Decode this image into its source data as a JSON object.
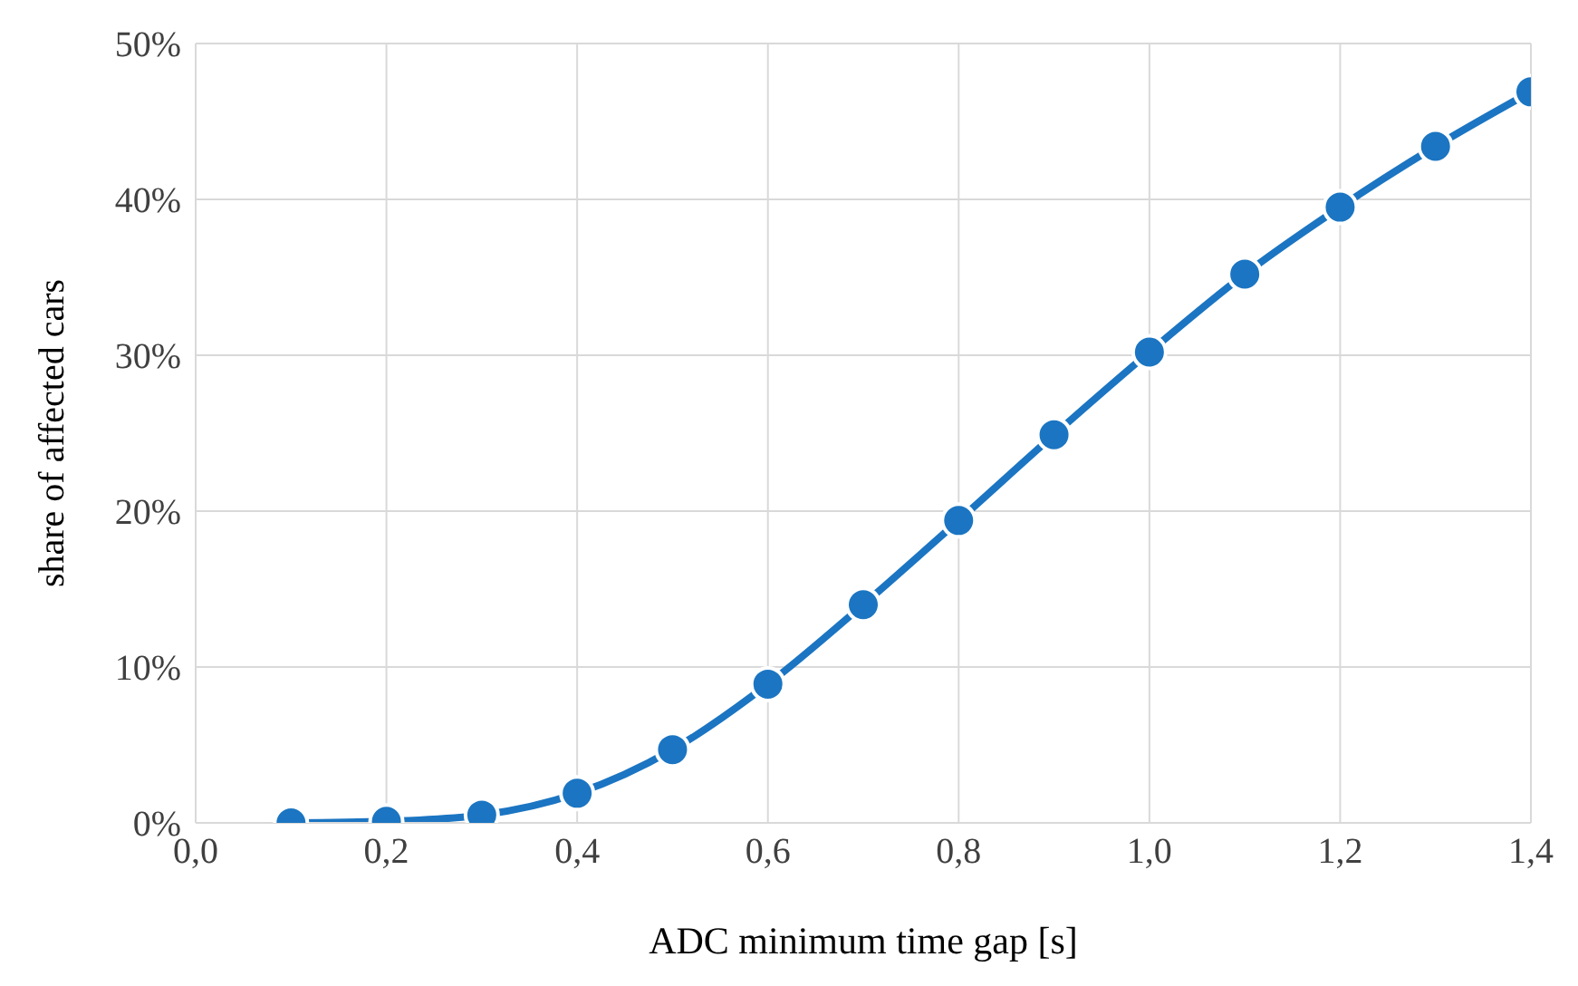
{
  "chart_data": {
    "type": "line",
    "xlabel": "ADC minimum time gap [s]",
    "ylabel": "share of affected cars",
    "x": [
      0.1,
      0.2,
      0.3,
      0.4,
      0.5,
      0.6,
      0.7,
      0.8,
      0.9,
      1.0,
      1.1,
      1.2,
      1.3,
      1.4
    ],
    "series": [
      {
        "color": "#1b75c2",
        "values": [
          0,
          0.1,
          0.5,
          1.9,
          4.7,
          8.9,
          14.0,
          19.4,
          24.9,
          30.2,
          35.2,
          39.5,
          43.4,
          46.9
        ]
      }
    ],
    "xlim": [
      0,
      1.4
    ],
    "ylim": [
      0,
      50
    ],
    "xticks": [
      {
        "value": 0,
        "label": "0,0"
      },
      {
        "value": 0.2,
        "label": "0,2"
      },
      {
        "value": 0.4,
        "label": "0,4"
      },
      {
        "value": 0.6,
        "label": "0,6"
      },
      {
        "value": 0.8,
        "label": "0,8"
      },
      {
        "value": 1.0,
        "label": "1,0"
      },
      {
        "value": 1.2,
        "label": "1,2"
      },
      {
        "value": 1.4,
        "label": "1,4"
      }
    ],
    "yticks": [
      {
        "value": 0,
        "label": "0%"
      },
      {
        "value": 10,
        "label": "10%"
      },
      {
        "value": 20,
        "label": "20%"
      },
      {
        "value": 30,
        "label": "30%"
      },
      {
        "value": 40,
        "label": "40%"
      },
      {
        "value": 50,
        "label": "50%"
      }
    ],
    "grid": true,
    "legend": false,
    "marker": "circle",
    "line_style": "solid"
  }
}
